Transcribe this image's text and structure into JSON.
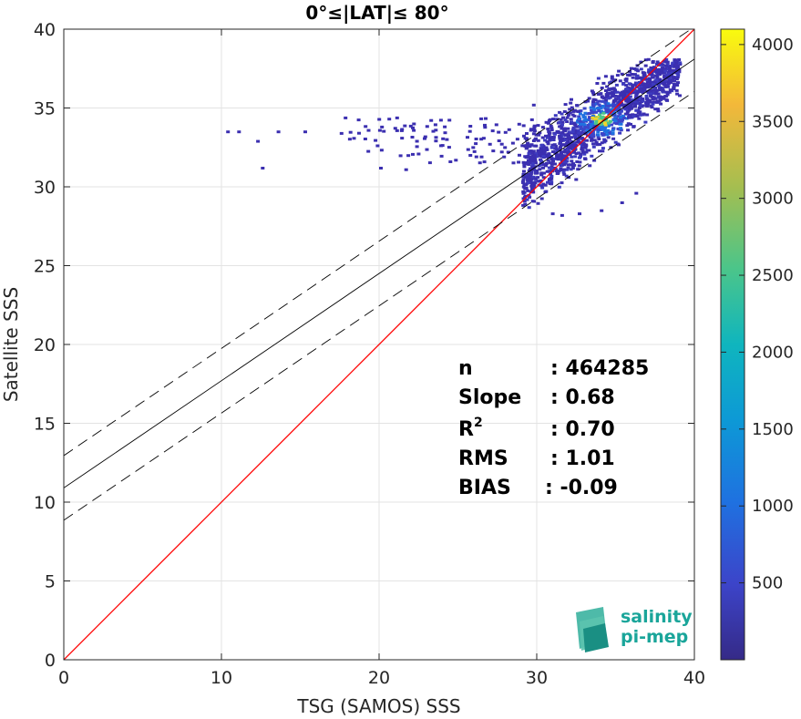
{
  "chart_data": {
    "type": "heatmap",
    "title": "0°≤|LAT|≤ 80°",
    "xlabel": "TSG (SAMOS) SSS",
    "ylabel": "Satellite SSS",
    "xlim": [
      0,
      40
    ],
    "ylim": [
      0,
      40
    ],
    "xticks": [
      "0",
      "10",
      "20",
      "30",
      "40"
    ],
    "yticks": [
      "0",
      "5",
      "10",
      "15",
      "20",
      "25",
      "30",
      "35",
      "40"
    ],
    "grid": true,
    "colorbar": {
      "colormap": "parula",
      "range": [
        0,
        4100
      ],
      "ticks": [
        "500",
        "1000",
        "1500",
        "2000",
        "2500",
        "3000",
        "3500",
        "4000"
      ]
    },
    "lines": [
      {
        "role": "one-to-one",
        "color": "#ff0000",
        "slope": 1.0,
        "intercept": 0.0
      },
      {
        "role": "regression",
        "color": "#000000",
        "style": "solid",
        "slope": 0.68,
        "intercept": 10.9
      },
      {
        "role": "regression-plus-rms",
        "color": "#000000",
        "style": "dashed",
        "slope": 0.68,
        "intercept": 12.95
      },
      {
        "role": "regression-minus-rms",
        "color": "#000000",
        "style": "dashed",
        "slope": 0.68,
        "intercept": 8.85
      }
    ],
    "stats": [
      {
        "label": "n",
        "sup": "",
        "value": ": 464285"
      },
      {
        "label": "Slope",
        "sup": "",
        "value": ": 0.68"
      },
      {
        "label": "R",
        "sup": "2",
        "value": ": 0.70"
      },
      {
        "label": "RMS",
        "sup": "",
        "value": ": 1.01"
      },
      {
        "label": "BIAS",
        "sup": "",
        "value": ": -0.09"
      }
    ],
    "density_core": {
      "x": 34,
      "y": 34.2
    }
  },
  "logo": {
    "line1": "salinity",
    "line2": "pi-mep",
    "color": "#1aa59a"
  }
}
